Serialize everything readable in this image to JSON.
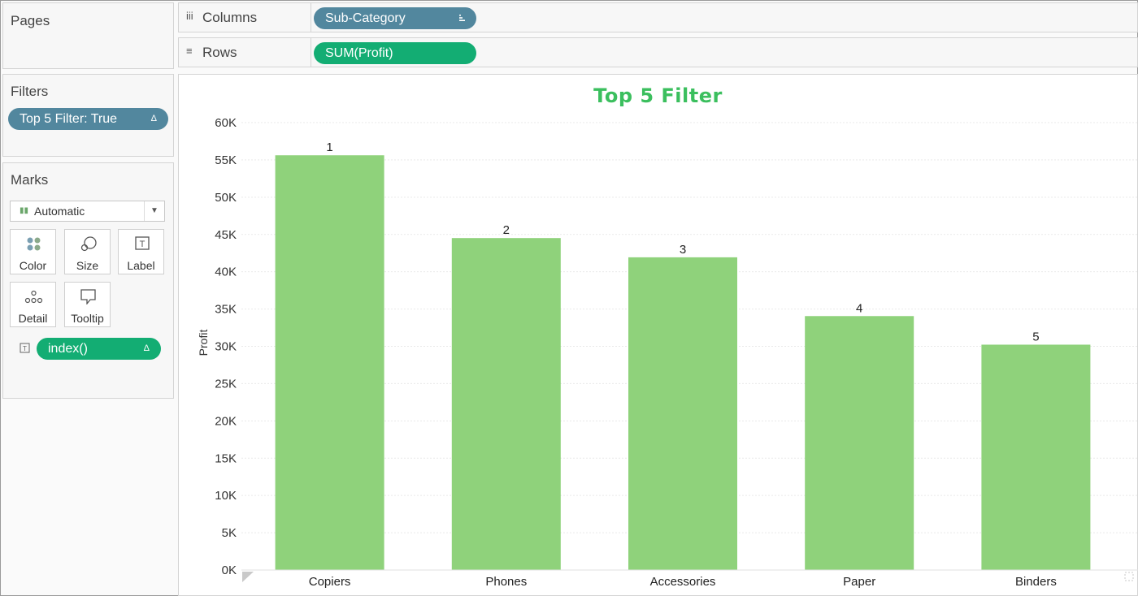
{
  "pages": {
    "title": "Pages"
  },
  "filters": {
    "title": "Filters",
    "pill": "Top 5 Filter: True",
    "delta": "Δ"
  },
  "marks": {
    "title": "Marks",
    "type_label": "Automatic",
    "buttons": [
      {
        "label": "Color"
      },
      {
        "label": "Size"
      },
      {
        "label": "Label"
      },
      {
        "label": "Detail"
      },
      {
        "label": "Tooltip"
      }
    ],
    "pill": "index()",
    "delta": "Δ"
  },
  "columns": {
    "label": "Columns",
    "pill": "Sub-Category"
  },
  "rows": {
    "label": "Rows",
    "pill": "SUM(Profit)"
  },
  "colors": {
    "bar": "#8fd27b",
    "title": "#3bbf5e",
    "pill_blue": "#52879e",
    "pill_green": "#13ad73"
  },
  "chart_data": {
    "type": "bar",
    "title": "Top 5 Filter",
    "ylabel": "Profit",
    "xlabel": "",
    "categories": [
      "Copiers",
      "Phones",
      "Accessories",
      "Paper",
      "Binders"
    ],
    "values": [
      55618,
      44516,
      41937,
      34054,
      30222
    ],
    "data_labels": [
      "1",
      "2",
      "3",
      "4",
      "5"
    ],
    "ylim": [
      0,
      60000
    ],
    "yticks": [
      0,
      5000,
      10000,
      15000,
      20000,
      25000,
      30000,
      35000,
      40000,
      45000,
      50000,
      55000,
      60000
    ],
    "ytick_labels": [
      "0K",
      "5K",
      "10K",
      "15K",
      "20K",
      "25K",
      "30K",
      "35K",
      "40K",
      "45K",
      "50K",
      "55K",
      "60K"
    ],
    "grid": true
  }
}
